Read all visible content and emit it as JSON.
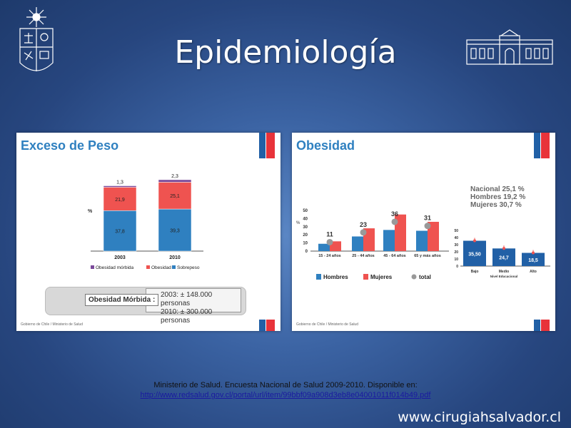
{
  "slide": {
    "title": "Epidemiología",
    "citation_line1": "Ministerio de Salud. Encuesta Nacional de Salud 2009-2010. Disponible en:",
    "citation_link": "http://www.redsalud.gov.cl/portal/url/item/99bbf09a908d3eb8e04001011f014b49.pdf",
    "website": "www.cirugiahsalvador.cl"
  },
  "colors": {
    "sobrepeso": "#2f80c0",
    "obesidad": "#ef5350",
    "obesidad_morbida": "#7b4a9a",
    "total": "#999999",
    "flag_blue": "#2160a6",
    "flag_red": "#e8333a",
    "heading_blue": "#2f80c0"
  },
  "left_panel": {
    "heading": "Exceso de Peso",
    "footnote": "Gobierno de Chile / Ministerio de Salud",
    "morbid_label": "Obesidad Mórbida :",
    "morbid_2003": "2003: ± 148.000 personas",
    "morbid_2010": "2010: ± 300.000 personas"
  },
  "right_panel": {
    "heading": "Obesidad",
    "footnote": "Gobierno de Chile / Ministerio de Salud",
    "stat_nacional": "Nacional 25,1  %",
    "stat_hombres": "Hombres 19,2  %",
    "stat_mujeres": "Mujeres 30,7  %"
  },
  "chart_data": [
    {
      "type": "bar",
      "stacked": true,
      "categories": [
        "2003",
        "2010"
      ],
      "ylabel": "%",
      "series": [
        {
          "name": "Sobrepeso",
          "values": [
            37.8,
            39.3
          ],
          "labels": [
            "37,8",
            "39,3"
          ]
        },
        {
          "name": "Obesidad",
          "values": [
            21.9,
            25.1
          ],
          "labels": [
            "21,9",
            "25,1"
          ]
        },
        {
          "name": "Obesidad mórbida",
          "values": [
            1.3,
            2.3
          ],
          "labels": [
            "1,3",
            "2,3"
          ]
        }
      ],
      "legend": "bottom"
    },
    {
      "type": "bar",
      "categories": [
        "15 - 24 años",
        "25 - 44 años",
        "45 - 64 años",
        "65 y más años"
      ],
      "ylim": [
        0,
        50
      ],
      "yticks": [
        "0",
        "10",
        "20",
        "30",
        "40",
        "50"
      ],
      "ylabel": "%",
      "series": [
        {
          "name": "Hombres",
          "values": [
            9,
            18,
            26,
            25
          ]
        },
        {
          "name": "Mujeres",
          "values": [
            12,
            28,
            45,
            36
          ]
        },
        {
          "name": "total",
          "values": [
            11,
            23,
            36,
            31
          ],
          "labels": [
            "11",
            "23",
            "36",
            "31"
          ],
          "marker": "dot"
        }
      ],
      "legend": "bottom"
    },
    {
      "type": "bar",
      "categories": [
        "Bajo",
        "Medio",
        "Alto"
      ],
      "xlabel": "Nivel Educacional",
      "ylim": [
        0,
        50
      ],
      "yticks": [
        "0",
        "10",
        "20",
        "30",
        "40",
        "50"
      ],
      "series": [
        {
          "name": "Nivel Educacional",
          "values": [
            35.5,
            24.7,
            18.5
          ],
          "labels": [
            "35,50",
            "24,7",
            "18,5"
          ]
        }
      ]
    }
  ]
}
